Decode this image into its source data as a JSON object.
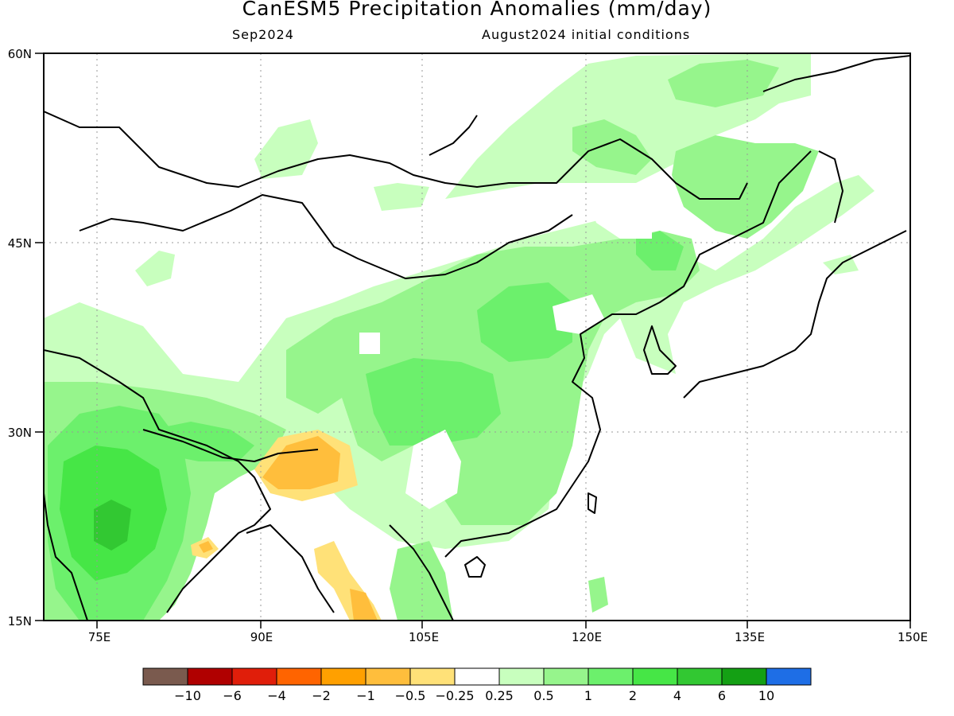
{
  "title": "CanESM5 Precipitation Anomalies (mm/day)",
  "subtitle_left": "Sep2024",
  "subtitle_right": "August2024 initial conditions",
  "lat_labels": [
    "60N",
    "45N",
    "30N",
    "15N"
  ],
  "lon_labels": [
    "75E",
    "90E",
    "105E",
    "120E",
    "135E",
    "150E"
  ],
  "colorbar": {
    "colors": [
      "#7a5a4e",
      "#b00000",
      "#e01e0a",
      "#ff6400",
      "#ffa000",
      "#ffbe3c",
      "#ffe178",
      "#ffffff",
      "#c8ffbe",
      "#96f58c",
      "#6cf06c",
      "#46e646",
      "#32c832",
      "#14a014",
      "#1e6ee6"
    ],
    "labels": [
      "−10",
      "−6",
      "−4",
      "−2",
      "−1",
      "−0.5",
      "−0.25",
      "0.25",
      "0.5",
      "1",
      "2",
      "4",
      "6",
      "10"
    ]
  }
}
